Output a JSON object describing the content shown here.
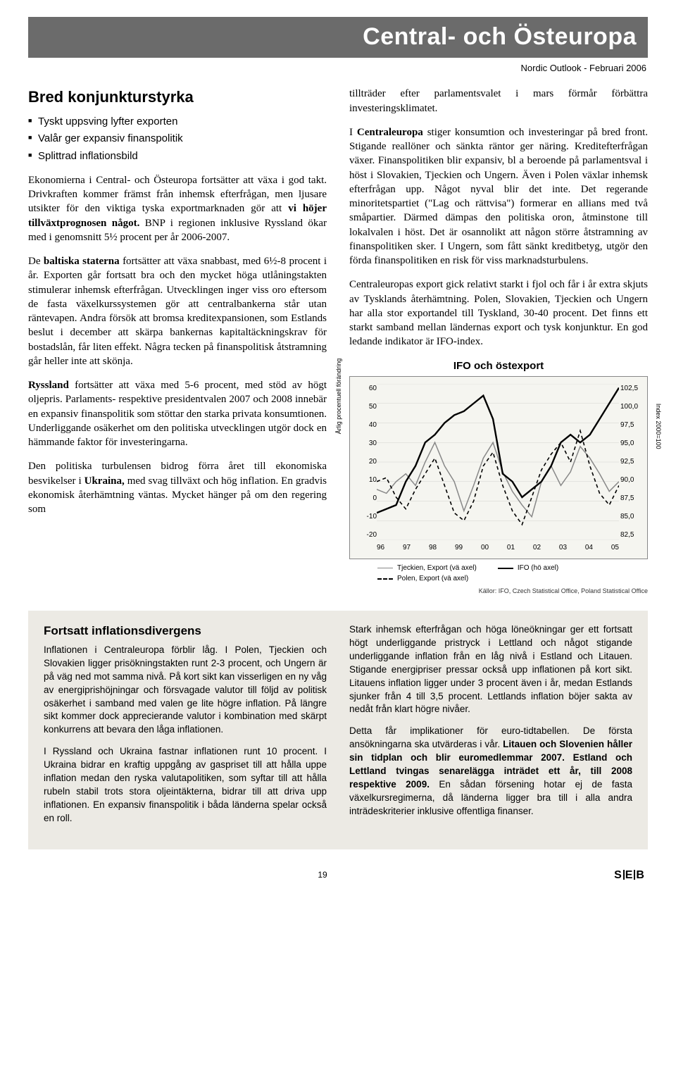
{
  "header": {
    "title": "Central- och Östeuropa",
    "subtitle": "Nordic Outlook - Februari 2006"
  },
  "left": {
    "heading": "Bred konjunkturstyrka",
    "bullets": [
      "Tyskt uppsving lyfter exporten",
      "Valår ger expansiv finanspolitik",
      "Splittrad inflationsbild"
    ],
    "p1a": "Ekonomierna i Central- och Östeuropa fortsätter att växa i god takt. Drivkraften kommer främst från inhemsk efterfrågan, men ljusare utsikter för den viktiga tyska exportmarknaden gör att ",
    "p1b": "vi höjer tillväxtprognosen något.",
    "p1c": " BNP i regionen inklusive Ryssland ökar med i genomsnitt 5½ procent per år 2006-2007.",
    "p2a": "De ",
    "p2b": "baltiska staterna",
    "p2c": " fortsätter att växa snabbast, med 6½-8 procent i år. Exporten går fortsatt bra och den mycket höga utlåningstakten stimulerar inhemsk efterfrågan. Utvecklingen inger viss oro eftersom de fasta växelkurssystemen gör att centralbankerna står utan räntevapen. Andra försök att bromsa kreditexpansionen, som Estlands beslut i december att skärpa bankernas kapitaltäckningskrav för bostadslån, får liten effekt. Några tecken på finanspolitisk åtstramning går heller inte att skönja.",
    "p3a": "Ryssland",
    "p3b": " fortsätter att växa med 5-6 procent, med stöd av högt oljepris. Parlaments- respektive presidentvalen 2007 och 2008 innebär en expansiv finanspolitik som stöttar den starka privata konsumtionen. Underliggande osäkerhet om den politiska utvecklingen utgör dock en hämmande faktor för investeringarna.",
    "p4a": "Den politiska turbulensen bidrog förra året till ekonomiska besvikelser i ",
    "p4b": "Ukraina,",
    "p4c": " med svag tillväxt och hög inflation. En gradvis ekonomisk återhämtning väntas. Mycket hänger på om den regering som"
  },
  "right": {
    "p1": "tillträder efter parlamentsvalet i mars förmår förbättra investeringsklimatet.",
    "p2a": "I ",
    "p2b": "Centraleuropa",
    "p2c": " stiger konsumtion och investeringar på bred front. Stigande reallöner och sänkta räntor ger näring. Kreditefterfrågan växer. Finanspolitiken blir expansiv, bl a beroende på parlamentsval i höst i Slovakien, Tjeckien och Ungern. Även i Polen växlar inhemsk efterfrågan upp. Något nyval blir det inte. Det regerande minoritetspartiet (\"Lag och rättvisa\") formerar en allians med två småpartier. Därmed dämpas den politiska oron, åtminstone till lokalvalen i höst. Det är osannolikt att någon större åtstramning av finanspolitiken sker. I Ungern, som fått sänkt kreditbetyg, utgör den förda finanspolitiken en risk för viss marknadsturbulens.",
    "p3": "Centraleuropas export gick relativt starkt i fjol och får i år extra skjuts av Tysklands återhämtning. Polen, Slovakien, Tjeckien och Ungern har alla stor exportandel till Tyskland, 30-40 procent. Det finns ett starkt samband mellan ländernas export och tysk konjunktur. En god ledande indikator är IFO-index."
  },
  "chart": {
    "title": "IFO och östexport",
    "y_left_label": "Årlig procentuell förändring",
    "y_right_label": "Index 2000=100",
    "y_left_ticks": [
      "60",
      "50",
      "40",
      "30",
      "20",
      "10",
      "0",
      "-10",
      "-20"
    ],
    "y_right_ticks": [
      "102,5",
      "100,0",
      "97,5",
      "95,0",
      "92,5",
      "90,0",
      "87,5",
      "85,0",
      "82,5"
    ],
    "x_ticks": [
      "96",
      "97",
      "98",
      "99",
      "00",
      "01",
      "02",
      "03",
      "04",
      "05"
    ],
    "legend": {
      "l1": "Tjeckien, Export (vä axel)",
      "l2": "Polen, Export (vä axel)",
      "r1": "IFO (hö axel)"
    },
    "source": "Källor: IFO, Czech Statistical Office, Poland Statistical Office",
    "series": {
      "ifo": {
        "color": "#000000",
        "width": 2.4,
        "dash": "none",
        "points": [
          [
            0,
            86
          ],
          [
            4,
            86.5
          ],
          [
            8,
            87
          ],
          [
            12,
            90
          ],
          [
            16,
            92
          ],
          [
            20,
            95
          ],
          [
            24,
            96
          ],
          [
            28,
            97.5
          ],
          [
            32,
            98.5
          ],
          [
            36,
            99
          ],
          [
            40,
            100
          ],
          [
            44,
            101
          ],
          [
            48,
            98
          ],
          [
            52,
            91
          ],
          [
            56,
            90
          ],
          [
            60,
            88
          ],
          [
            64,
            89
          ],
          [
            68,
            90
          ],
          [
            72,
            92
          ],
          [
            76,
            95
          ],
          [
            80,
            96
          ],
          [
            84,
            95
          ],
          [
            88,
            96
          ],
          [
            92,
            98
          ],
          [
            96,
            100
          ],
          [
            100,
            102
          ]
        ]
      },
      "czech": {
        "color": "#888888",
        "width": 1.5,
        "dash": "none",
        "points": [
          [
            0,
            6
          ],
          [
            4,
            4
          ],
          [
            8,
            10
          ],
          [
            12,
            14
          ],
          [
            16,
            8
          ],
          [
            20,
            20
          ],
          [
            24,
            30
          ],
          [
            28,
            18
          ],
          [
            32,
            10
          ],
          [
            36,
            -5
          ],
          [
            40,
            8
          ],
          [
            44,
            22
          ],
          [
            48,
            30
          ],
          [
            52,
            15
          ],
          [
            56,
            5
          ],
          [
            60,
            -2
          ],
          [
            64,
            -8
          ],
          [
            68,
            10
          ],
          [
            72,
            18
          ],
          [
            76,
            8
          ],
          [
            80,
            15
          ],
          [
            84,
            28
          ],
          [
            88,
            22
          ],
          [
            92,
            14
          ],
          [
            96,
            5
          ],
          [
            100,
            10
          ]
        ]
      },
      "poland": {
        "color": "#000000",
        "width": 1.6,
        "dash": "5,4",
        "points": [
          [
            0,
            10
          ],
          [
            4,
            12
          ],
          [
            8,
            2
          ],
          [
            12,
            -4
          ],
          [
            16,
            6
          ],
          [
            20,
            14
          ],
          [
            24,
            22
          ],
          [
            28,
            8
          ],
          [
            32,
            -6
          ],
          [
            36,
            -10
          ],
          [
            40,
            0
          ],
          [
            44,
            18
          ],
          [
            48,
            25
          ],
          [
            52,
            8
          ],
          [
            56,
            -5
          ],
          [
            60,
            -12
          ],
          [
            64,
            2
          ],
          [
            68,
            16
          ],
          [
            72,
            24
          ],
          [
            76,
            30
          ],
          [
            80,
            20
          ],
          [
            84,
            36
          ],
          [
            88,
            18
          ],
          [
            92,
            4
          ],
          [
            96,
            -2
          ],
          [
            100,
            8
          ]
        ]
      }
    },
    "left_range": [
      -20,
      60
    ],
    "right_range": [
      82.5,
      102.5
    ],
    "bg": "#f5f5f0",
    "grid": "#bbbbbb"
  },
  "box": {
    "heading": "Fortsatt inflationsdivergens",
    "left_p1": "Inflationen i Centraleuropa förblir låg. I Polen, Tjeckien och Slovakien ligger prisökningstakten runt 2-3 procent, och Ungern är på väg ned mot samma nivå. På kort sikt kan visserligen en ny våg av energiprishöjningar och försvagade valutor till följd av politisk osäkerhet i samband med valen ge lite högre inflation. På längre sikt kommer dock apprecierande valutor i kombination med skärpt konkurrens att bevara den låga inflationen.",
    "left_p2": "I Ryssland och Ukraina fastnar inflationen runt 10 procent. I Ukraina bidrar en kraftig uppgång av gaspriset till att hålla uppe inflation medan den ryska valutapolitiken, som syftar till att hålla rubeln stabil trots stora oljeintäkterna, bidrar till att driva upp inflationen. En expansiv finanspolitik i båda länderna spelar också en roll.",
    "right_p1": "Stark inhemsk efterfrågan och höga löneökningar ger ett fortsatt högt underliggande pristryck i Lettland och något stigande underliggande inflation från en låg nivå i Estland och Litauen. Stigande energipriser pressar också upp inflationen på kort sikt. Litauens inflation ligger under 3 procent även i år, medan Estlands sjunker från 4 till 3,5 procent. Lettlands inflation böjer sakta av nedåt från klart högre nivåer.",
    "right_p2a": "Detta får implikationer för euro-tidtabellen. De första ansökningarna ska utvärderas i vår. ",
    "right_p2b": "Litauen och Slovenien håller sin tidplan och blir euromedlemmar 2007. Estland och Lettland tvingas senarelägga inträdet ett år, till 2008 respektive 2009.",
    "right_p2c": " En sådan försening hotar ej de fasta växelkursregimerna, då länderna ligger bra till i alla andra inträdeskriterier inklusive offentliga finanser."
  },
  "footer": {
    "page": "19",
    "logo": "S|E|B"
  }
}
